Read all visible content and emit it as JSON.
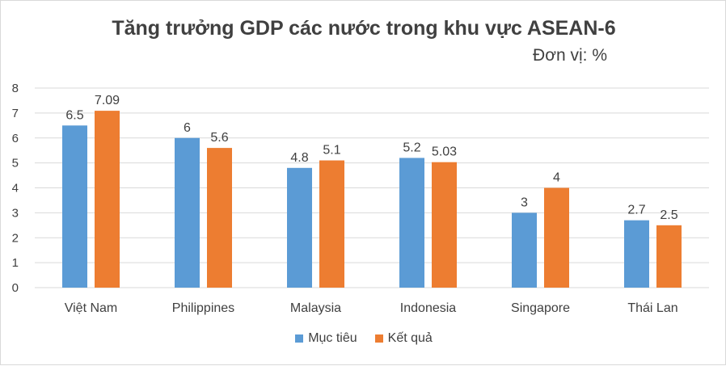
{
  "colors": {
    "series1": "#5b9bd5",
    "series2": "#ed7d31",
    "grid": "#d9d9d9",
    "text": "#404040"
  },
  "chart_data": {
    "type": "bar",
    "title": "Tăng trưởng GDP các nước trong khu vực ASEAN-6",
    "subtitle": "Đơn vị: %",
    "xlabel": "",
    "ylabel": "",
    "ylim": [
      0,
      8
    ],
    "yticks": [
      "0",
      "1",
      "2",
      "3",
      "4",
      "5",
      "6",
      "7",
      "8"
    ],
    "grid": true,
    "legend_position": "bottom",
    "categories": [
      "Việt Nam",
      "Philippines",
      "Malaysia",
      "Indonesia",
      "Singapore",
      "Thái Lan"
    ],
    "series": [
      {
        "name": "Mục tiêu",
        "values": [
          6.5,
          6,
          4.8,
          5.2,
          3,
          2.7
        ],
        "labels": [
          "6.5",
          "6",
          "4.8",
          "5.2",
          "3",
          "2.7"
        ]
      },
      {
        "name": "Kết quả",
        "values": [
          7.09,
          5.6,
          5.1,
          5.03,
          4,
          2.5
        ],
        "labels": [
          "7.09",
          "5.6",
          "5.1",
          "5.03",
          "4",
          "2.5"
        ]
      }
    ]
  }
}
